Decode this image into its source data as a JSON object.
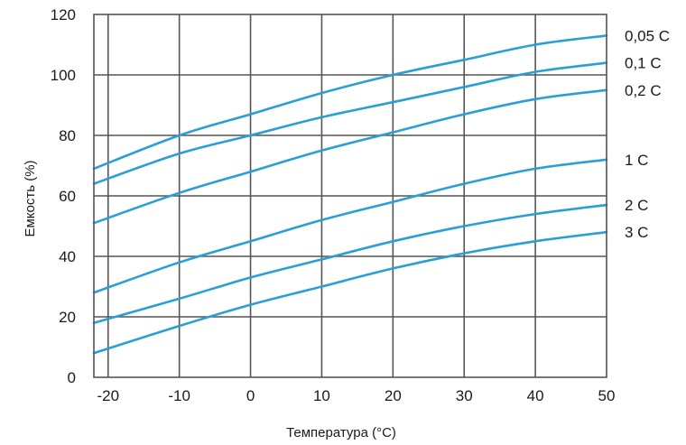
{
  "chart_data": {
    "type": "line",
    "title": "",
    "xlabel": "Температура (°C)",
    "ylabel": "Емкость (%)",
    "xlim": [
      -22,
      50
    ],
    "ylim": [
      0,
      120
    ],
    "x_ticks": [
      -20,
      -10,
      0,
      10,
      20,
      30,
      40,
      50
    ],
    "y_ticks": [
      0,
      20,
      40,
      60,
      80,
      100,
      120
    ],
    "x_tick_labels": [
      "-20",
      "-10",
      "0",
      "10",
      "20",
      "30",
      "40",
      "50"
    ],
    "y_tick_labels": [
      "0",
      "20",
      "40",
      "60",
      "80",
      "100",
      "120"
    ],
    "grid": true,
    "legend": "right-labels",
    "line_color": "#2a9fd6",
    "grid_color": "#555555",
    "x": [
      -22,
      -10,
      0,
      10,
      20,
      30,
      40,
      50
    ],
    "series": [
      {
        "name": "0,05 C",
        "values": [
          69,
          80,
          87,
          94,
          100,
          105,
          110,
          113
        ]
      },
      {
        "name": "0,1 C",
        "values": [
          64,
          74,
          80,
          86,
          91,
          96,
          101,
          104
        ]
      },
      {
        "name": "0,2 C",
        "values": [
          51,
          61,
          68,
          75,
          81,
          87,
          92,
          95
        ]
      },
      {
        "name": "1 C",
        "values": [
          28,
          38,
          45,
          52,
          58,
          64,
          69,
          72
        ]
      },
      {
        "name": "2 C",
        "values": [
          18,
          26,
          33,
          39,
          45,
          50,
          54,
          57
        ]
      },
      {
        "name": "3 C",
        "values": [
          8,
          17,
          24,
          30,
          36,
          41,
          45,
          48
        ]
      }
    ]
  }
}
